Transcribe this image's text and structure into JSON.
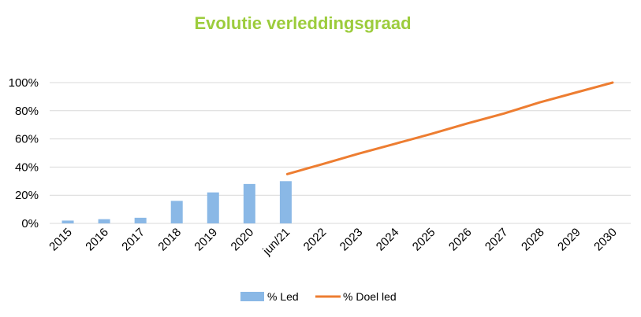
{
  "chart_data": {
    "type": "bar",
    "title": "Evolutie verleddingsgraad",
    "categories": [
      "2015",
      "2016",
      "2017",
      "2018",
      "2019",
      "2020",
      "jun/21",
      "2022",
      "2023",
      "2024",
      "2025",
      "2026",
      "2027",
      "2028",
      "2029",
      "2030"
    ],
    "y_ticks": [
      "0%",
      "20%",
      "40%",
      "60%",
      "80%",
      "100%"
    ],
    "ylim": [
      0,
      100
    ],
    "grid": true,
    "legend_position": "bottom",
    "series": [
      {
        "name": "% Led",
        "kind": "bar",
        "color": "#8ab8e6",
        "values": [
          2,
          3,
          4,
          16,
          22,
          28,
          30,
          null,
          null,
          null,
          null,
          null,
          null,
          null,
          null,
          null
        ]
      },
      {
        "name": "% Doel led",
        "kind": "line",
        "color": "#ed7d31",
        "values": [
          null,
          null,
          null,
          null,
          null,
          null,
          35,
          42,
          49.5,
          56.5,
          63.5,
          71,
          78,
          86,
          93,
          100
        ]
      }
    ],
    "title_color": "#9ccc3c"
  }
}
